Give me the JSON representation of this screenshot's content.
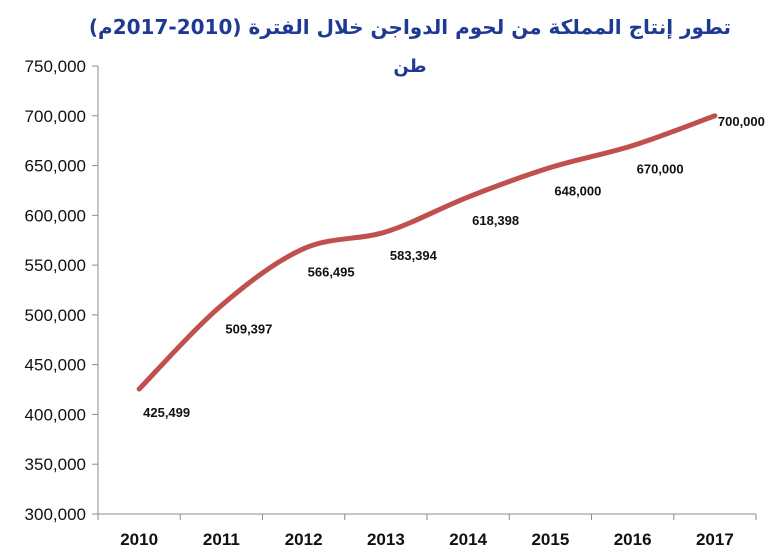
{
  "chart_data": {
    "type": "line",
    "title": "تطور إنتاج المملكة من لحوم الدواجن خلال الفترة (2010-2017م)",
    "unit_label": "طن",
    "xlabel": "",
    "ylabel": "",
    "categories": [
      "2010",
      "2011",
      "2012",
      "2013",
      "2014",
      "2015",
      "2016",
      "2017"
    ],
    "series": [
      {
        "values": [
          425499,
          509397,
          566495,
          583394,
          618398,
          648000,
          670000,
          700000
        ],
        "labels": [
          "425,499",
          "509,397",
          "566,495",
          "583,394",
          "618,398",
          "648,000",
          "670,000",
          "700,000"
        ]
      }
    ],
    "ylim": [
      300000,
      750000
    ],
    "yticks": [
      300000,
      350000,
      400000,
      450000,
      500000,
      550000,
      600000,
      650000,
      700000,
      750000
    ],
    "ytick_labels": [
      "300,000",
      "350,000",
      "400,000",
      "450,000",
      "500,000",
      "550,000",
      "600,000",
      "650,000",
      "700,000",
      "750,000"
    ],
    "grid": false,
    "line_color": "#c0504d",
    "title_color": "#1f3a93"
  }
}
